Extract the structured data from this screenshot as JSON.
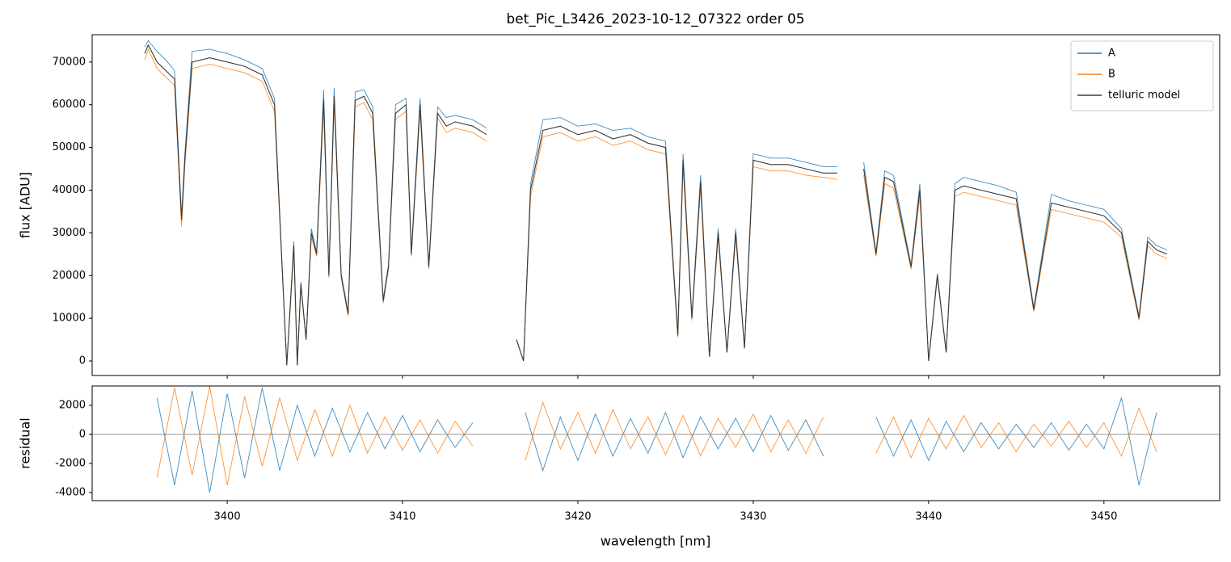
{
  "chart_data": [
    {
      "type": "line",
      "title": "bet_Pic_L3426_2023-10-12_07322  order 05",
      "ylabel": "flux [ADU]",
      "x": [
        3395.3,
        3395.5,
        3396,
        3396.5,
        3397,
        3397.4,
        3397.6,
        3398,
        3399,
        3400,
        3401,
        3402,
        3402.7,
        3403.1,
        3403.4,
        3403.8,
        3404.0,
        3404.2,
        3404.5,
        3404.8,
        3405.1,
        3405.5,
        3405.8,
        3406.1,
        3406.5,
        3406.9,
        3407.3,
        3407.8,
        3408.3,
        3408.9,
        3409.2,
        3409.6,
        3410.2,
        3410.5,
        3411,
        3411.5,
        3412,
        3412.5,
        3413,
        3414,
        3414.8,
        3415.6,
        3416.5,
        3416.9,
        3417.3,
        3418,
        3419,
        3420,
        3421,
        3422,
        3423,
        3424,
        3425,
        3425.7,
        3426,
        3426.5,
        3427,
        3427.5,
        3428,
        3428.5,
        3429,
        3429.5,
        3430,
        3431,
        3432,
        3433,
        3434,
        3434.8,
        3435.5,
        3436.3,
        3437,
        3437.5,
        3438,
        3439,
        3439.5,
        3440,
        3440.5,
        3441,
        3441.5,
        3442,
        3443,
        3444,
        3445,
        3446,
        3447,
        3448,
        3449,
        3450,
        3451,
        3452,
        3452.5,
        3453,
        3453.6
      ],
      "series": [
        {
          "name": "A",
          "color": "#1f77b4",
          "values": [
            73500,
            75000,
            72500,
            70500,
            68000,
            34000,
            49500,
            72500,
            73000,
            72000,
            70500,
            68500,
            61500,
            25500,
            -1000,
            28000,
            -1000,
            18500,
            5000,
            31000,
            25500,
            63500,
            20500,
            64000,
            20500,
            11500,
            63000,
            63500,
            59500,
            14500,
            22500,
            60000,
            61500,
            25500,
            61500,
            22500,
            59500,
            57000,
            57500,
            56500,
            54500,
            null,
            5000,
            0,
            41500,
            56500,
            57000,
            55000,
            55500,
            54000,
            54500,
            52500,
            51500,
            6500,
            48500,
            10500,
            43500,
            1000,
            31000,
            2000,
            31000,
            3000,
            48500,
            47500,
            47500,
            46500,
            45500,
            45500,
            null,
            46500,
            25500,
            44500,
            43500,
            22500,
            41500,
            0,
            20500,
            2000,
            41500,
            43000,
            42000,
            41000,
            39500,
            12500,
            39000,
            37500,
            36500,
            35500,
            31000,
            10500,
            29000,
            27000,
            26000
          ]
        },
        {
          "name": "B",
          "color": "#ff7f0e",
          "values": [
            70500,
            73000,
            68500,
            66500,
            64500,
            31500,
            46500,
            68500,
            69500,
            68500,
            67500,
            65500,
            58500,
            24500,
            -1000,
            26000,
            -1000,
            17500,
            5000,
            29000,
            24500,
            59500,
            19500,
            60500,
            19500,
            10500,
            59500,
            60500,
            56500,
            13500,
            21500,
            56500,
            58500,
            24500,
            58500,
            21500,
            57000,
            53500,
            54500,
            53500,
            51500,
            null,
            5000,
            0,
            38500,
            52500,
            53500,
            51500,
            52500,
            50500,
            51500,
            49500,
            48500,
            5500,
            45500,
            9500,
            40500,
            1000,
            29000,
            2000,
            29000,
            3000,
            45500,
            44500,
            44500,
            43500,
            43000,
            42500,
            null,
            43500,
            24500,
            41500,
            40500,
            21500,
            38500,
            0,
            19500,
            2000,
            38500,
            39500,
            38500,
            37500,
            36500,
            11500,
            35500,
            34500,
            33500,
            32500,
            29000,
            9500,
            27000,
            25000,
            24000
          ]
        },
        {
          "name": "telluric model",
          "color": "#3a3a3a",
          "values": [
            72000,
            74000,
            70000,
            68000,
            66000,
            33000,
            48000,
            70000,
            71000,
            70000,
            69000,
            67000,
            60000,
            25000,
            -1000,
            27000,
            -1000,
            18000,
            5000,
            30000,
            25000,
            61000,
            20000,
            62000,
            20000,
            11000,
            61000,
            62000,
            58000,
            14000,
            22000,
            58000,
            60000,
            25000,
            60000,
            22000,
            58000,
            55000,
            56000,
            55000,
            53000,
            null,
            5000,
            0,
            40000,
            54000,
            55000,
            53000,
            54000,
            52000,
            53000,
            51000,
            50000,
            6000,
            47000,
            10000,
            42000,
            1000,
            30000,
            2000,
            30000,
            3000,
            47000,
            46000,
            46000,
            45000,
            44000,
            44000,
            null,
            45000,
            25000,
            43000,
            42000,
            22000,
            40000,
            0,
            20000,
            2000,
            40000,
            41000,
            40000,
            39000,
            38000,
            12000,
            37000,
            36000,
            35000,
            34000,
            30000,
            10000,
            28000,
            26000,
            25000
          ]
        }
      ],
      "xlim": [
        3392.3,
        3456.6
      ],
      "xticks": [
        3400,
        3410,
        3420,
        3430,
        3440,
        3450
      ],
      "ylim": [
        -3400,
        76400
      ],
      "yticks": [
        0,
        10000,
        20000,
        30000,
        40000,
        50000,
        60000,
        70000
      ],
      "legend": "upper right"
    },
    {
      "type": "line",
      "xlabel": "wavelength [nm]",
      "ylabel": "residual",
      "x": [
        3396,
        3397,
        3398,
        3399,
        3400,
        3401,
        3402,
        3403,
        3404,
        3405,
        3406,
        3407,
        3408,
        3409,
        3410,
        3411,
        3412,
        3413,
        3414,
        3415.5,
        3417,
        3418,
        3419,
        3420,
        3421,
        3422,
        3423,
        3424,
        3425,
        3426,
        3427,
        3428,
        3429,
        3430,
        3431,
        3432,
        3433,
        3434,
        3435.5,
        3437,
        3438,
        3439,
        3440,
        3441,
        3442,
        3443,
        3444,
        3445,
        3446,
        3447,
        3448,
        3449,
        3450,
        3451,
        3452,
        3453
      ],
      "series": [
        {
          "name": "A",
          "color": "#1f77b4",
          "values": [
            2500,
            -3500,
            3000,
            -4000,
            2800,
            -3000,
            3200,
            -2500,
            2000,
            -1500,
            1800,
            -1200,
            1500,
            -1000,
            1300,
            -1200,
            1000,
            -900,
            800,
            null,
            1500,
            -2500,
            1200,
            -1800,
            1400,
            -1500,
            1100,
            -1300,
            1500,
            -1600,
            1200,
            -1000,
            1100,
            -1200,
            1300,
            -1100,
            1000,
            -1500,
            null,
            1200,
            -1500,
            1000,
            -1800,
            900,
            -1200,
            800,
            -1000,
            700,
            -900,
            800,
            -1100,
            700,
            -1000,
            2500,
            -3500,
            1500
          ]
        },
        {
          "name": "B",
          "color": "#ff7f0e",
          "values": [
            -3000,
            3200,
            -2800,
            3300,
            -3500,
            2600,
            -2200,
            2500,
            -1800,
            1700,
            -1500,
            2000,
            -1300,
            1200,
            -1100,
            1000,
            -1300,
            900,
            -800,
            null,
            -1800,
            2200,
            -1000,
            1500,
            -1300,
            1700,
            -1000,
            1200,
            -1400,
            1300,
            -1500,
            1100,
            -900,
            1400,
            -1200,
            1000,
            -1300,
            1200,
            null,
            -1300,
            1200,
            -1600,
            1100,
            -1000,
            1300,
            -900,
            800,
            -1200,
            700,
            -800,
            900,
            -900,
            800,
            -1500,
            1800,
            -1200
          ]
        }
      ],
      "hline": 0,
      "xlim": [
        3392.3,
        3456.6
      ],
      "xticks": [
        3400,
        3410,
        3420,
        3430,
        3440,
        3450
      ],
      "ylim": [
        -4560,
        3330
      ],
      "yticks": [
        -4000,
        -2000,
        0,
        2000
      ]
    }
  ]
}
